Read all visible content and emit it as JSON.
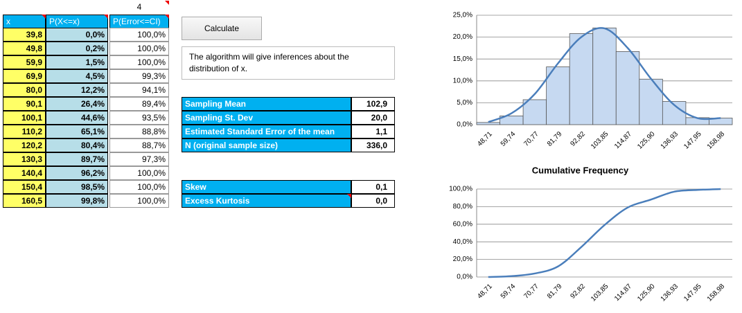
{
  "sheet": {
    "ci_value": "4",
    "headers": [
      "x",
      "P(X<=x)",
      "P(Error<=CI)"
    ],
    "rows": [
      [
        "39,8",
        "0,0%",
        "100,0%"
      ],
      [
        "49,8",
        "0,2%",
        "100,0%"
      ],
      [
        "59,9",
        "1,5%",
        "100,0%"
      ],
      [
        "69,9",
        "4,5%",
        "99,3%"
      ],
      [
        "80,0",
        "12,2%",
        "94,1%"
      ],
      [
        "90,1",
        "26,4%",
        "89,4%"
      ],
      [
        "100,1",
        "44,6%",
        "93,5%"
      ],
      [
        "110,2",
        "65,1%",
        "88,8%"
      ],
      [
        "120,2",
        "80,4%",
        "88,7%"
      ],
      [
        "130,3",
        "89,7%",
        "97,3%"
      ],
      [
        "140,4",
        "96,2%",
        "100,0%"
      ],
      [
        "150,4",
        "98,5%",
        "100,0%"
      ],
      [
        "160,5",
        "99,8%",
        "100,0%"
      ]
    ],
    "button": "Calculate",
    "note": "The algorithm will give inferences about the distribution of x.",
    "stats": [
      [
        "Sampling Mean",
        "102,9"
      ],
      [
        "Sampling St. Dev",
        "20,0"
      ],
      [
        "Estimated Standard Error of the mean",
        "1,1"
      ],
      [
        "N (original sample size)",
        "336,0"
      ]
    ],
    "shape_stats": [
      [
        "Skew",
        "0,1"
      ],
      [
        "Excess Kurtosis",
        "0,0"
      ]
    ]
  },
  "chart_data": [
    {
      "type": "bar",
      "categories": [
        "48,71",
        "59,74",
        "70,77",
        "81,79",
        "92,82",
        "103,85",
        "114,87",
        "125,90",
        "136,93",
        "147,95",
        "158,98"
      ],
      "values": [
        0.5,
        2,
        5.7,
        13.2,
        20.8,
        22.1,
        16.7,
        10.4,
        5.3,
        1.6,
        1.5
      ],
      "fit_values": [
        0.6,
        2.6,
        7,
        14,
        20,
        22,
        17.5,
        10.5,
        4.5,
        1.5,
        1.5
      ],
      "color": "#c6d9f1",
      "line_color": "#4a7ebb",
      "ylim": [
        0,
        25
      ],
      "yticks": [
        {
          "value": 0,
          "label": "0,0%"
        },
        {
          "value": 5,
          "label": "5,0%"
        },
        {
          "value": 10,
          "label": "10,0%"
        },
        {
          "value": 15,
          "label": "15,0%"
        },
        {
          "value": 20,
          "label": "20,0%"
        },
        {
          "value": 25,
          "label": "25,0%"
        }
      ],
      "grid": true
    },
    {
      "type": "line",
      "title": "Cumulative Frequency",
      "categories": [
        "48,71",
        "59,74",
        "70,77",
        "81,79",
        "92,82",
        "103,85",
        "114,87",
        "125,90",
        "136,93",
        "147,95",
        "158,98"
      ],
      "values": [
        0,
        1,
        4,
        12,
        34,
        59,
        79,
        88,
        97,
        99,
        100
      ],
      "line_color": "#4a7ebb",
      "ylim": [
        0,
        100
      ],
      "yticks": [
        {
          "value": 0,
          "label": "0,0%"
        },
        {
          "value": 20,
          "label": "20,0%"
        },
        {
          "value": 40,
          "label": "40,0%"
        },
        {
          "value": 60,
          "label": "60,0%"
        },
        {
          "value": 80,
          "label": "80,0%"
        },
        {
          "value": 100,
          "label": "100,0%"
        }
      ],
      "grid": true
    }
  ]
}
